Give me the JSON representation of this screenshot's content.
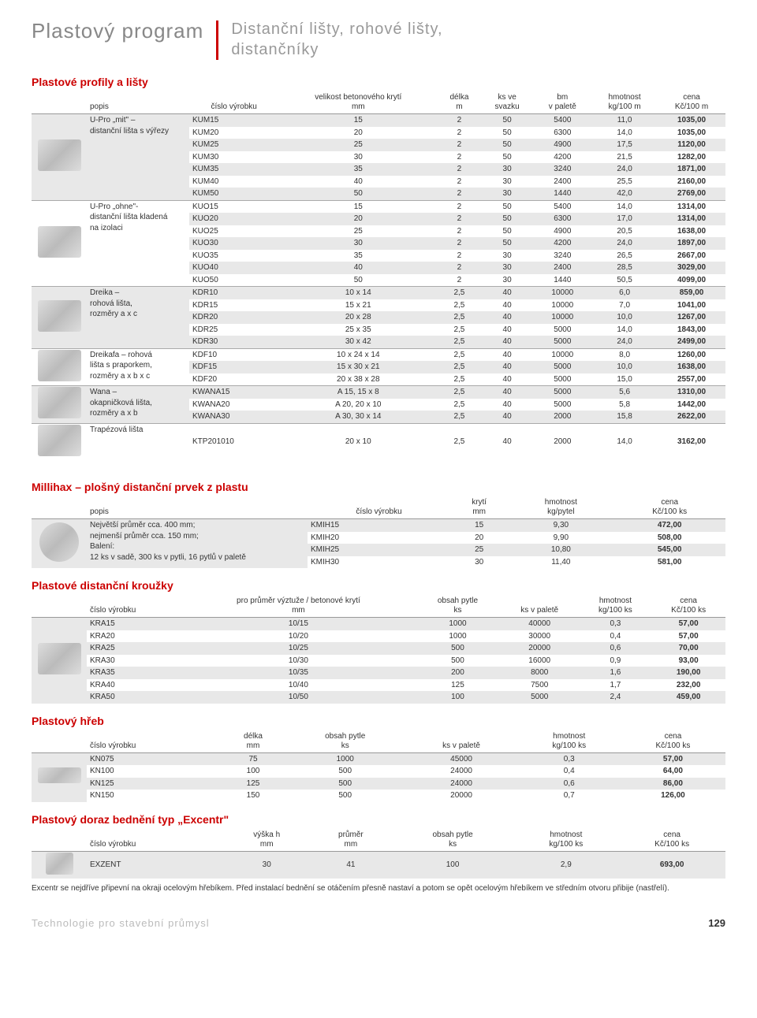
{
  "header": {
    "main": "Plastový program",
    "sub": "Distanční lišty, rohové lišty,\ndistančníky"
  },
  "s1": {
    "title": "Plastové profily a lišty",
    "cols": [
      "popis",
      "číslo výrobku",
      "velikost betonového krytí\nmm",
      "délka\nm",
      "ks ve\nsvazku",
      "bm\nv paletě",
      "hmotnost\nkg/100 m",
      "cena\nKč/100 m"
    ],
    "groups": [
      {
        "desc": "U-Pro „mit\" –\ndistanční lišta s výřezy",
        "rows": [
          [
            "KUM15",
            "15",
            "2",
            "50",
            "5400",
            "11,0",
            "1035,00",
            true
          ],
          [
            "KUM20",
            "20",
            "2",
            "50",
            "6300",
            "14,0",
            "1035,00",
            false
          ],
          [
            "KUM25",
            "25",
            "2",
            "50",
            "4900",
            "17,5",
            "1120,00",
            true
          ],
          [
            "KUM30",
            "30",
            "2",
            "50",
            "4200",
            "21,5",
            "1282,00",
            false
          ],
          [
            "KUM35",
            "35",
            "2",
            "30",
            "3240",
            "24,0",
            "1871,00",
            true
          ],
          [
            "KUM40",
            "40",
            "2",
            "30",
            "2400",
            "25,5",
            "2160,00",
            false
          ],
          [
            "KUM50",
            "50",
            "2",
            "30",
            "1440",
            "42,0",
            "2769,00",
            true
          ]
        ]
      },
      {
        "desc": "U-Pro „ohne\"-\ndistanční lišta kladená\nna izolaci",
        "rows": [
          [
            "KUO15",
            "15",
            "2",
            "50",
            "5400",
            "14,0",
            "1314,00",
            false
          ],
          [
            "KUO20",
            "20",
            "2",
            "50",
            "6300",
            "17,0",
            "1314,00",
            true
          ],
          [
            "KUO25",
            "25",
            "2",
            "50",
            "4900",
            "20,5",
            "1638,00",
            false
          ],
          [
            "KUO30",
            "30",
            "2",
            "50",
            "4200",
            "24,0",
            "1897,00",
            true
          ],
          [
            "KUO35",
            "35",
            "2",
            "30",
            "3240",
            "26,5",
            "2667,00",
            false
          ],
          [
            "KUO40",
            "40",
            "2",
            "30",
            "2400",
            "28,5",
            "3029,00",
            true
          ],
          [
            "KUO50",
            "50",
            "2",
            "30",
            "1440",
            "50,5",
            "4099,00",
            false
          ]
        ]
      },
      {
        "desc": "Dreika –\nrohová lišta,\nrozměry a x c",
        "rows": [
          [
            "KDR10",
            "10 x 14",
            "2,5",
            "40",
            "10000",
            "6,0",
            "859,00",
            true
          ],
          [
            "KDR15",
            "15 x 21",
            "2,5",
            "40",
            "10000",
            "7,0",
            "1041,00",
            false
          ],
          [
            "KDR20",
            "20 x 28",
            "2,5",
            "40",
            "10000",
            "10,0",
            "1267,00",
            true
          ],
          [
            "KDR25",
            "25 x 35",
            "2,5",
            "40",
            "5000",
            "14,0",
            "1843,00",
            false
          ],
          [
            "KDR30",
            "30 x 42",
            "2,5",
            "40",
            "5000",
            "24,0",
            "2499,00",
            true
          ]
        ]
      },
      {
        "desc": "Dreikafa – rohová\nlišta s praporkem,\nrozměry a x b x c",
        "rows": [
          [
            "KDF10",
            "10 x 24 x 14",
            "2,5",
            "40",
            "10000",
            "8,0",
            "1260,00",
            false
          ],
          [
            "KDF15",
            "15 x 30 x 21",
            "2,5",
            "40",
            "5000",
            "10,0",
            "1638,00",
            true
          ],
          [
            "KDF20",
            "20 x 38 x 28",
            "2,5",
            "40",
            "5000",
            "15,0",
            "2557,00",
            false
          ]
        ]
      },
      {
        "desc": "Wana –\nokapničková lišta,\nrozměry a x b",
        "rows": [
          [
            "KWANA15",
            "A 15, 15 x 8",
            "2,5",
            "40",
            "5000",
            "5,6",
            "1310,00",
            true
          ],
          [
            "KWANA20",
            "A 20, 20 x 10",
            "2,5",
            "40",
            "5000",
            "5,8",
            "1442,00",
            false
          ],
          [
            "KWANA30",
            "A 30, 30 x 14",
            "2,5",
            "40",
            "2000",
            "15,8",
            "2622,00",
            true
          ]
        ]
      },
      {
        "desc": "Trapézová lišta",
        "rows": [
          [
            "KTP201010",
            "20 x 10",
            "2,5",
            "40",
            "2000",
            "14,0",
            "3162,00",
            false
          ]
        ]
      }
    ]
  },
  "s2": {
    "title": "Millihax – plošný distanční prvek z plastu",
    "cols": [
      "popis",
      "číslo výrobku",
      "krytí\nmm",
      "hmotnost\nkg/pytel",
      "cena\nKč/100 ks"
    ],
    "desc": "Největší průměr cca. 400 mm;\nnejmenší průměr cca. 150 mm;\nBalení:\n12 ks v sadě, 300 ks v pytli, 16 pytlů v paletě",
    "rows": [
      [
        "KMIH15",
        "15",
        "9,30",
        "472,00",
        true
      ],
      [
        "KMIH20",
        "20",
        "9,90",
        "508,00",
        false
      ],
      [
        "KMIH25",
        "25",
        "10,80",
        "545,00",
        true
      ],
      [
        "KMIH30",
        "30",
        "11,40",
        "581,00",
        false
      ]
    ]
  },
  "s3": {
    "title": "Plastové distanční kroužky",
    "cols": [
      "číslo výrobku",
      "pro průměr výztuže / betonové krytí\nmm",
      "obsah pytle\nks",
      "ks v paletě",
      "hmotnost\nkg/100 ks",
      "cena\nKč/100 ks"
    ],
    "rows": [
      [
        "KRA15",
        "10/15",
        "1000",
        "40000",
        "0,3",
        "57,00",
        true
      ],
      [
        "KRA20",
        "10/20",
        "1000",
        "30000",
        "0,4",
        "57,00",
        false
      ],
      [
        "KRA25",
        "10/25",
        "500",
        "20000",
        "0,6",
        "70,00",
        true
      ],
      [
        "KRA30",
        "10/30",
        "500",
        "16000",
        "0,9",
        "93,00",
        false
      ],
      [
        "KRA35",
        "10/35",
        "200",
        "8000",
        "1,6",
        "190,00",
        true
      ],
      [
        "KRA40",
        "10/40",
        "125",
        "7500",
        "1,7",
        "232,00",
        false
      ],
      [
        "KRA50",
        "10/50",
        "100",
        "5000",
        "2,4",
        "459,00",
        true
      ]
    ]
  },
  "s4": {
    "title": "Plastový hřeb",
    "cols": [
      "číslo výrobku",
      "délka\nmm",
      "obsah pytle\nks",
      "ks v paletě",
      "hmotnost\nkg/100 ks",
      "cena\nKč/100 ks"
    ],
    "rows": [
      [
        "KN075",
        "75",
        "1000",
        "45000",
        "0,3",
        "57,00",
        true
      ],
      [
        "KN100",
        "100",
        "500",
        "24000",
        "0,4",
        "64,00",
        false
      ],
      [
        "KN125",
        "125",
        "500",
        "24000",
        "0,6",
        "86,00",
        true
      ],
      [
        "KN150",
        "150",
        "500",
        "20000",
        "0,7",
        "126,00",
        false
      ]
    ]
  },
  "s5": {
    "title": "Plastový doraz bednění typ „Excentr\"",
    "cols": [
      "číslo výrobku",
      "výška h\nmm",
      "průměr\nmm",
      "obsah pytle\nks",
      "hmotnost\nkg/100 ks",
      "cena\nKč/100 ks"
    ],
    "rows": [
      [
        "EXZENT",
        "30",
        "41",
        "100",
        "2,9",
        "693,00",
        true
      ]
    ],
    "note": "Excentr se nejdříve připevní na okraji ocelovým hřebíkem. Před instalací bednění se otáčením přesně nastaví a potom se opět ocelovým hřebíkem ve středním otvoru přibije (nastřelí)."
  },
  "footer": {
    "text": "Technologie pro stavební průmysl",
    "page": "129"
  }
}
